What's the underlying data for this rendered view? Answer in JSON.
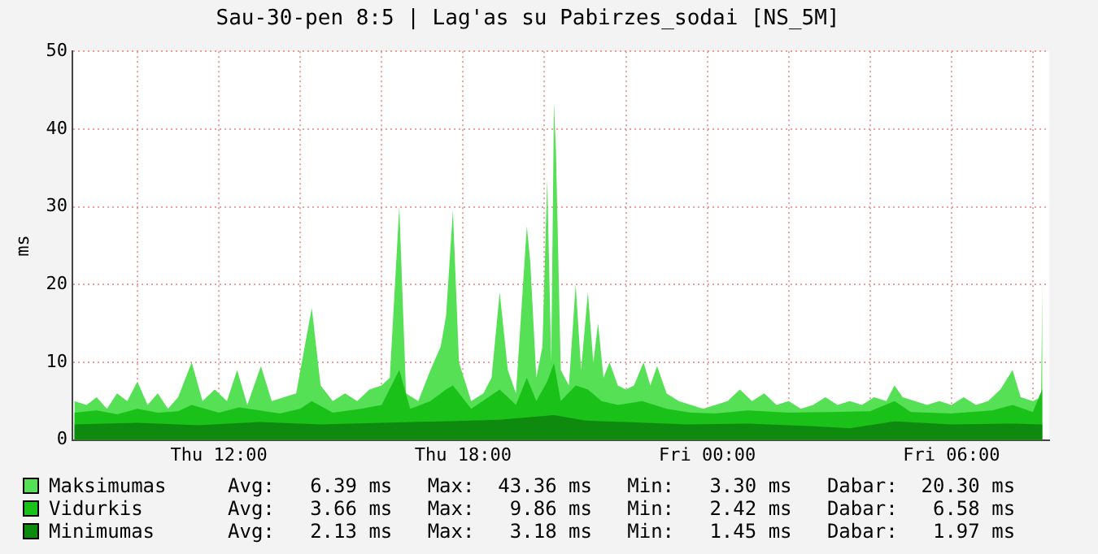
{
  "chart_data": {
    "type": "area",
    "title": "Sau-30-pen 8:5 | Lag'as su Pabirzes_sodai [NS_5M]",
    "ylabel": "ms",
    "xlim": [
      "--01-30T08:24",
      "--01-31T08:24"
    ],
    "xticks": [
      {
        "value": "--01-30T10:00",
        "label": null
      },
      {
        "value": "--01-30T12:00",
        "label": "Thu 12:00"
      },
      {
        "value": "--01-30T14:00",
        "label": null
      },
      {
        "value": "--01-30T16:00",
        "label": null
      },
      {
        "value": "--01-30T18:00",
        "label": "Thu 18:00"
      },
      {
        "value": "--01-30T20:00",
        "label": null
      },
      {
        "value": "--01-30T22:00",
        "label": null
      },
      {
        "value": "--01-31T00:00",
        "label": "Fri 00:00"
      },
      {
        "value": "--01-31T02:00",
        "label": null
      },
      {
        "value": "--01-31T04:00",
        "label": null
      },
      {
        "value": "--01-31T06:00",
        "label": "Fri 06:00"
      },
      {
        "value": "--01-31T08:00",
        "label": null
      }
    ],
    "ylim": [
      0,
      50
    ],
    "yticks": [
      0,
      10,
      20,
      30,
      40,
      50
    ],
    "grid": true,
    "legend": "bottom",
    "annotations": [
      "Avg:   6.39 ms   Max:  43.36 ms   Min:   3.30 ms   Dabar:  20.30 ms",
      "Avg:   3.66 ms   Max:   9.86 ms   Min:   2.42 ms   Dabar:   6.58 ms",
      "Avg:   2.13 ms   Max:   3.18 ms   Min:   1.45 ms   Dabar:   1.97 ms"
    ],
    "series": [
      {
        "name": "Maksimumas",
        "color": "#55e055",
        "x": [
          "--01-30T08:27",
          "--01-30T08:45",
          "--01-30T09:00",
          "--01-30T09:15",
          "--01-30T09:30",
          "--01-30T09:45",
          "--01-30T10:00",
          "--01-30T10:15",
          "--01-30T10:30",
          "--01-30T10:45",
          "--01-30T11:00",
          "--01-30T11:20",
          "--01-30T11:36",
          "--01-30T11:54",
          "--01-30T12:12",
          "--01-30T12:27",
          "--01-30T12:42",
          "--01-30T13:02",
          "--01-30T13:18",
          "--01-30T13:36",
          "--01-30T13:54",
          "--01-30T14:17",
          "--01-30T14:30",
          "--01-30T14:48",
          "--01-30T15:06",
          "--01-30T15:24",
          "--01-30T15:42",
          "--01-30T16:00",
          "--01-30T16:12",
          "--01-30T16:26",
          "--01-30T16:36",
          "--01-30T16:54",
          "--01-30T17:12",
          "--01-30T17:27",
          "--01-30T17:35",
          "--01-30T17:45",
          "--01-30T17:54",
          "--01-30T18:12",
          "--01-30T18:30",
          "--01-30T18:42",
          "--01-30T18:54",
          "--01-30T19:06",
          "--01-30T19:18",
          "--01-30T19:34",
          "--01-30T19:39",
          "--01-30T19:48",
          "--01-30T19:57",
          "--01-30T20:04",
          "--01-30T20:10",
          "--01-30T20:14",
          "--01-30T20:17",
          "--01-30T20:24",
          "--01-30T20:36",
          "--01-30T20:46",
          "--01-30T20:54",
          "--01-30T21:04",
          "--01-30T21:12",
          "--01-30T21:19",
          "--01-30T21:27",
          "--01-30T21:36",
          "--01-30T21:48",
          "--01-30T22:00",
          "--01-30T22:12",
          "--01-30T22:26",
          "--01-30T22:36",
          "--01-30T22:46",
          "--01-30T23:00",
          "--01-30T23:18",
          "--01-30T23:36",
          "--01-30T23:54",
          "--01-31T00:12",
          "--01-31T00:30",
          "--01-31T00:48",
          "--01-31T01:06",
          "--01-31T01:24",
          "--01-31T01:42",
          "--01-31T02:00",
          "--01-31T02:18",
          "--01-31T02:36",
          "--01-31T02:54",
          "--01-31T03:12",
          "--01-31T03:30",
          "--01-31T03:48",
          "--01-31T04:06",
          "--01-31T04:24",
          "--01-31T04:36",
          "--01-31T04:48",
          "--01-31T05:06",
          "--01-31T05:24",
          "--01-31T05:42",
          "--01-31T06:00",
          "--01-31T06:18",
          "--01-31T06:36",
          "--01-31T06:54",
          "--01-31T07:12",
          "--01-31T07:30",
          "--01-31T07:42",
          "--01-31T08:00",
          "--01-31T08:12",
          "--01-31T08:14"
        ],
        "values": [
          5,
          4.5,
          5.5,
          4,
          6,
          5,
          7.5,
          4.5,
          6,
          4,
          5.5,
          10,
          5,
          6.5,
          5,
          9,
          4.5,
          9.5,
          5,
          5.5,
          6,
          17,
          7,
          5,
          6,
          5,
          6.5,
          7,
          8,
          30,
          6,
          5,
          9,
          12,
          16,
          29.5,
          10,
          5,
          6,
          8,
          19,
          9,
          6,
          27.5,
          23,
          8,
          12,
          33.5,
          10,
          43.4,
          37,
          9,
          7,
          20,
          9,
          19,
          10,
          15,
          8,
          10,
          7,
          6.5,
          7,
          10,
          7,
          9.5,
          6,
          5,
          4.5,
          4,
          4.5,
          5,
          6.5,
          5,
          6,
          4.5,
          5,
          4,
          4.5,
          5.5,
          4.5,
          5,
          4.5,
          5.5,
          5,
          7,
          5.5,
          5,
          4.5,
          5,
          4.5,
          5.5,
          4.5,
          5,
          6.5,
          9,
          5.5,
          5,
          5.5,
          20.3
        ]
      },
      {
        "name": "Vidurkis",
        "color": "#19c119",
        "x": [
          "--01-30T08:27",
          "--01-30T09:00",
          "--01-30T09:30",
          "--01-30T10:00",
          "--01-30T10:30",
          "--01-30T11:00",
          "--01-30T11:20",
          "--01-30T12:00",
          "--01-30T12:30",
          "--01-30T13:00",
          "--01-30T13:30",
          "--01-30T14:00",
          "--01-30T14:17",
          "--01-30T14:48",
          "--01-30T15:30",
          "--01-30T16:00",
          "--01-30T16:26",
          "--01-30T16:42",
          "--01-30T17:12",
          "--01-30T17:35",
          "--01-30T17:45",
          "--01-30T18:12",
          "--01-30T18:54",
          "--01-30T19:18",
          "--01-30T19:34",
          "--01-30T19:48",
          "--01-30T20:04",
          "--01-30T20:14",
          "--01-30T20:24",
          "--01-30T20:46",
          "--01-30T21:04",
          "--01-30T21:24",
          "--01-30T21:48",
          "--01-30T22:24",
          "--01-30T23:00",
          "--01-30T23:36",
          "--01-31T00:12",
          "--01-31T01:00",
          "--01-31T02:00",
          "--01-31T03:00",
          "--01-31T04:00",
          "--01-31T04:36",
          "--01-31T05:00",
          "--01-31T06:00",
          "--01-31T07:00",
          "--01-31T07:30",
          "--01-31T08:00",
          "--01-31T08:14"
        ],
        "values": [
          3.5,
          3.8,
          3.3,
          4,
          3.5,
          3.7,
          4.5,
          3.5,
          4.2,
          3.8,
          3.4,
          4,
          5,
          3.5,
          4,
          4.5,
          9,
          4,
          5,
          6.5,
          7,
          4,
          6.5,
          4.5,
          8,
          5,
          7.5,
          9.9,
          5,
          7,
          6.5,
          5,
          4.5,
          5,
          4,
          3.5,
          3.4,
          3.8,
          3.5,
          3.6,
          3.7,
          5,
          3.6,
          3.4,
          3.8,
          4.5,
          3.6,
          6.6
        ]
      },
      {
        "name": "Minimumas",
        "color": "#0e8a0e",
        "x": [
          "--01-30T08:27",
          "--01-30T10:00",
          "--01-30T11:30",
          "--01-30T13:00",
          "--01-30T14:30",
          "--01-30T16:00",
          "--01-30T17:30",
          "--01-30T18:54",
          "--01-30T20:14",
          "--01-30T21:00",
          "--01-30T22:00",
          "--01-30T23:30",
          "--01-31T01:00",
          "--01-31T02:30",
          "--01-31T03:30",
          "--01-31T04:36",
          "--01-31T06:00",
          "--01-31T07:30",
          "--01-31T08:14"
        ],
        "values": [
          2,
          2.2,
          1.9,
          2.3,
          2,
          2.2,
          2.4,
          2.6,
          3.2,
          2.5,
          2.3,
          2,
          2.1,
          1.8,
          1.5,
          2.4,
          2,
          2.1,
          2
        ]
      }
    ]
  }
}
